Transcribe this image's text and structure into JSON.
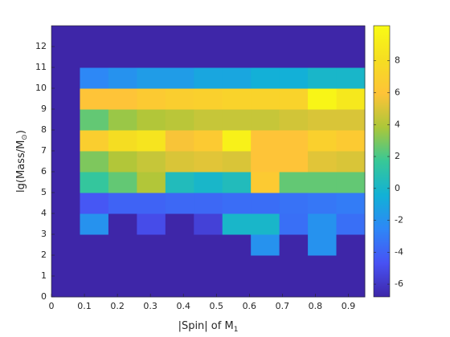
{
  "chart_data": {
    "type": "heatmap",
    "xlabel": [
      "|Spin| of M",
      "1"
    ],
    "ylabel": [
      "lg(Mass/M",
      "⊙",
      ")"
    ],
    "xlim": [
      0,
      0.95
    ],
    "xticks": [
      0,
      0.1,
      0.2,
      0.3,
      0.4,
      0.5,
      0.6,
      0.7,
      0.8,
      0.9
    ],
    "ylim": [
      0,
      13
    ],
    "yticks": [
      0,
      1,
      2,
      3,
      4,
      5,
      6,
      7,
      8,
      9,
      10,
      11,
      12
    ],
    "colormap": "parula",
    "clim": [
      -6.8,
      10.2
    ],
    "cticks": [
      -6,
      -4,
      -2,
      0,
      2,
      4,
      6,
      8
    ],
    "values": [
      [
        -6.8,
        -6.8,
        -6.8,
        -6.8,
        -6.8,
        -6.8,
        -6.8,
        -6.8,
        -6.8,
        -6.8,
        -6.8
      ],
      [
        -6.8,
        -6.8,
        -6.8,
        -6.8,
        -6.8,
        -6.8,
        -6.8,
        -6.8,
        -6.8,
        -6.8,
        -6.8
      ],
      [
        -6.8,
        -6.8,
        -6.8,
        -6.8,
        -6.8,
        -6.8,
        -6.8,
        -2,
        -6.8,
        -2,
        -6.8
      ],
      [
        -6.8,
        -2,
        -6.8,
        -5,
        -6.8,
        -5.5,
        0,
        0,
        -3.5,
        -2,
        -3.5
      ],
      [
        -6.8,
        -4.5,
        -4,
        -4,
        -3.8,
        -3.8,
        -3.6,
        -3.6,
        -3.4,
        -3.2,
        -3
      ],
      [
        -6.8,
        1.5,
        2.5,
        4,
        0.5,
        0,
        0.5,
        6.5,
        2.5,
        2.5,
        2.5
      ],
      [
        -6.8,
        3,
        4,
        4.5,
        5,
        5.2,
        5,
        6,
        6,
        5.2,
        5
      ],
      [
        -6.8,
        6.8,
        8,
        8.5,
        5.8,
        6.5,
        9.5,
        6,
        6,
        7,
        6.5
      ],
      [
        -6.8,
        2.5,
        3.5,
        4,
        4.2,
        4.5,
        4.5,
        4.5,
        4.8,
        5,
        5
      ],
      [
        -6.8,
        6,
        6,
        6.5,
        6.8,
        7,
        7.2,
        7.2,
        7.2,
        9.8,
        8.8
      ],
      [
        -6.8,
        -2.5,
        -2,
        -1.5,
        -1.5,
        -1,
        -1,
        -0.5,
        -0.5,
        0,
        0
      ],
      [
        -6.8,
        -6.8,
        -6.8,
        -6.8,
        -6.8,
        -6.8,
        -6.8,
        -6.8,
        -6.8,
        -6.8,
        -6.8
      ],
      [
        -6.8,
        -6.8,
        -6.8,
        -6.8,
        -6.8,
        -6.8,
        -6.8,
        -6.8,
        -6.8,
        -6.8,
        -6.8
      ]
    ]
  }
}
